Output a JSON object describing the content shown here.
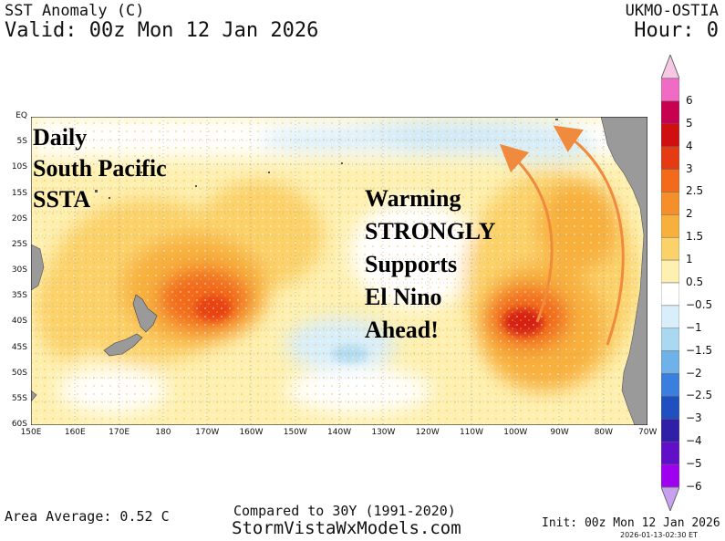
{
  "header": {
    "title": "SST Anomaly (C)",
    "valid": "Valid: 00z Mon 12 Jan 2026",
    "model": "UKMO-OSTIA",
    "hour": "Hour: 0"
  },
  "map": {
    "region": "South Pacific",
    "lat_labels": [
      "EQ",
      "5S",
      "10S",
      "15S",
      "20S",
      "25S",
      "30S",
      "35S",
      "40S",
      "45S",
      "50S",
      "55S",
      "60S"
    ],
    "lon_labels": [
      "150E",
      "160E",
      "170E",
      "180",
      "170W",
      "160W",
      "150W",
      "140W",
      "130W",
      "120W",
      "110W",
      "100W",
      "90W",
      "80W",
      "70W"
    ],
    "land_color": "#9a9a9a",
    "arrow_color": "#f08a3c"
  },
  "overlay": {
    "left_lines": [
      "Daily",
      "South Pacific",
      "SSTA"
    ],
    "right_lines": [
      "Warming",
      "STRONGLY",
      "Supports",
      "El Nino",
      "Ahead!"
    ]
  },
  "colorbar": {
    "labels": [
      "6",
      "5",
      "4",
      "3",
      "2.5",
      "2",
      "1.5",
      "1",
      "0.5",
      "−0.5",
      "−1",
      "−1.5",
      "−2",
      "−2.5",
      "−3",
      "−4",
      "−5",
      "−6"
    ],
    "colors": [
      "#f06cc4",
      "#c80050",
      "#d01010",
      "#e63a12",
      "#f26a1a",
      "#f58f2a",
      "#f8b03c",
      "#fbd26a",
      "#fdf0b0",
      "#ffffff",
      "#d8eefa",
      "#aad8f0",
      "#6fb2ea",
      "#3a7fde",
      "#2050c0",
      "#3020a8",
      "#6010c8",
      "#a000f0"
    ]
  },
  "footer": {
    "area_average": "Area Average: 0.52 C",
    "compared": "Compared to 30Y (1991-2020)",
    "site": "StormVistaWxModels.com",
    "init": "Init: 00z Mon 12 Jan 2026",
    "stamp": "2026-01-13-02:30 ET"
  }
}
